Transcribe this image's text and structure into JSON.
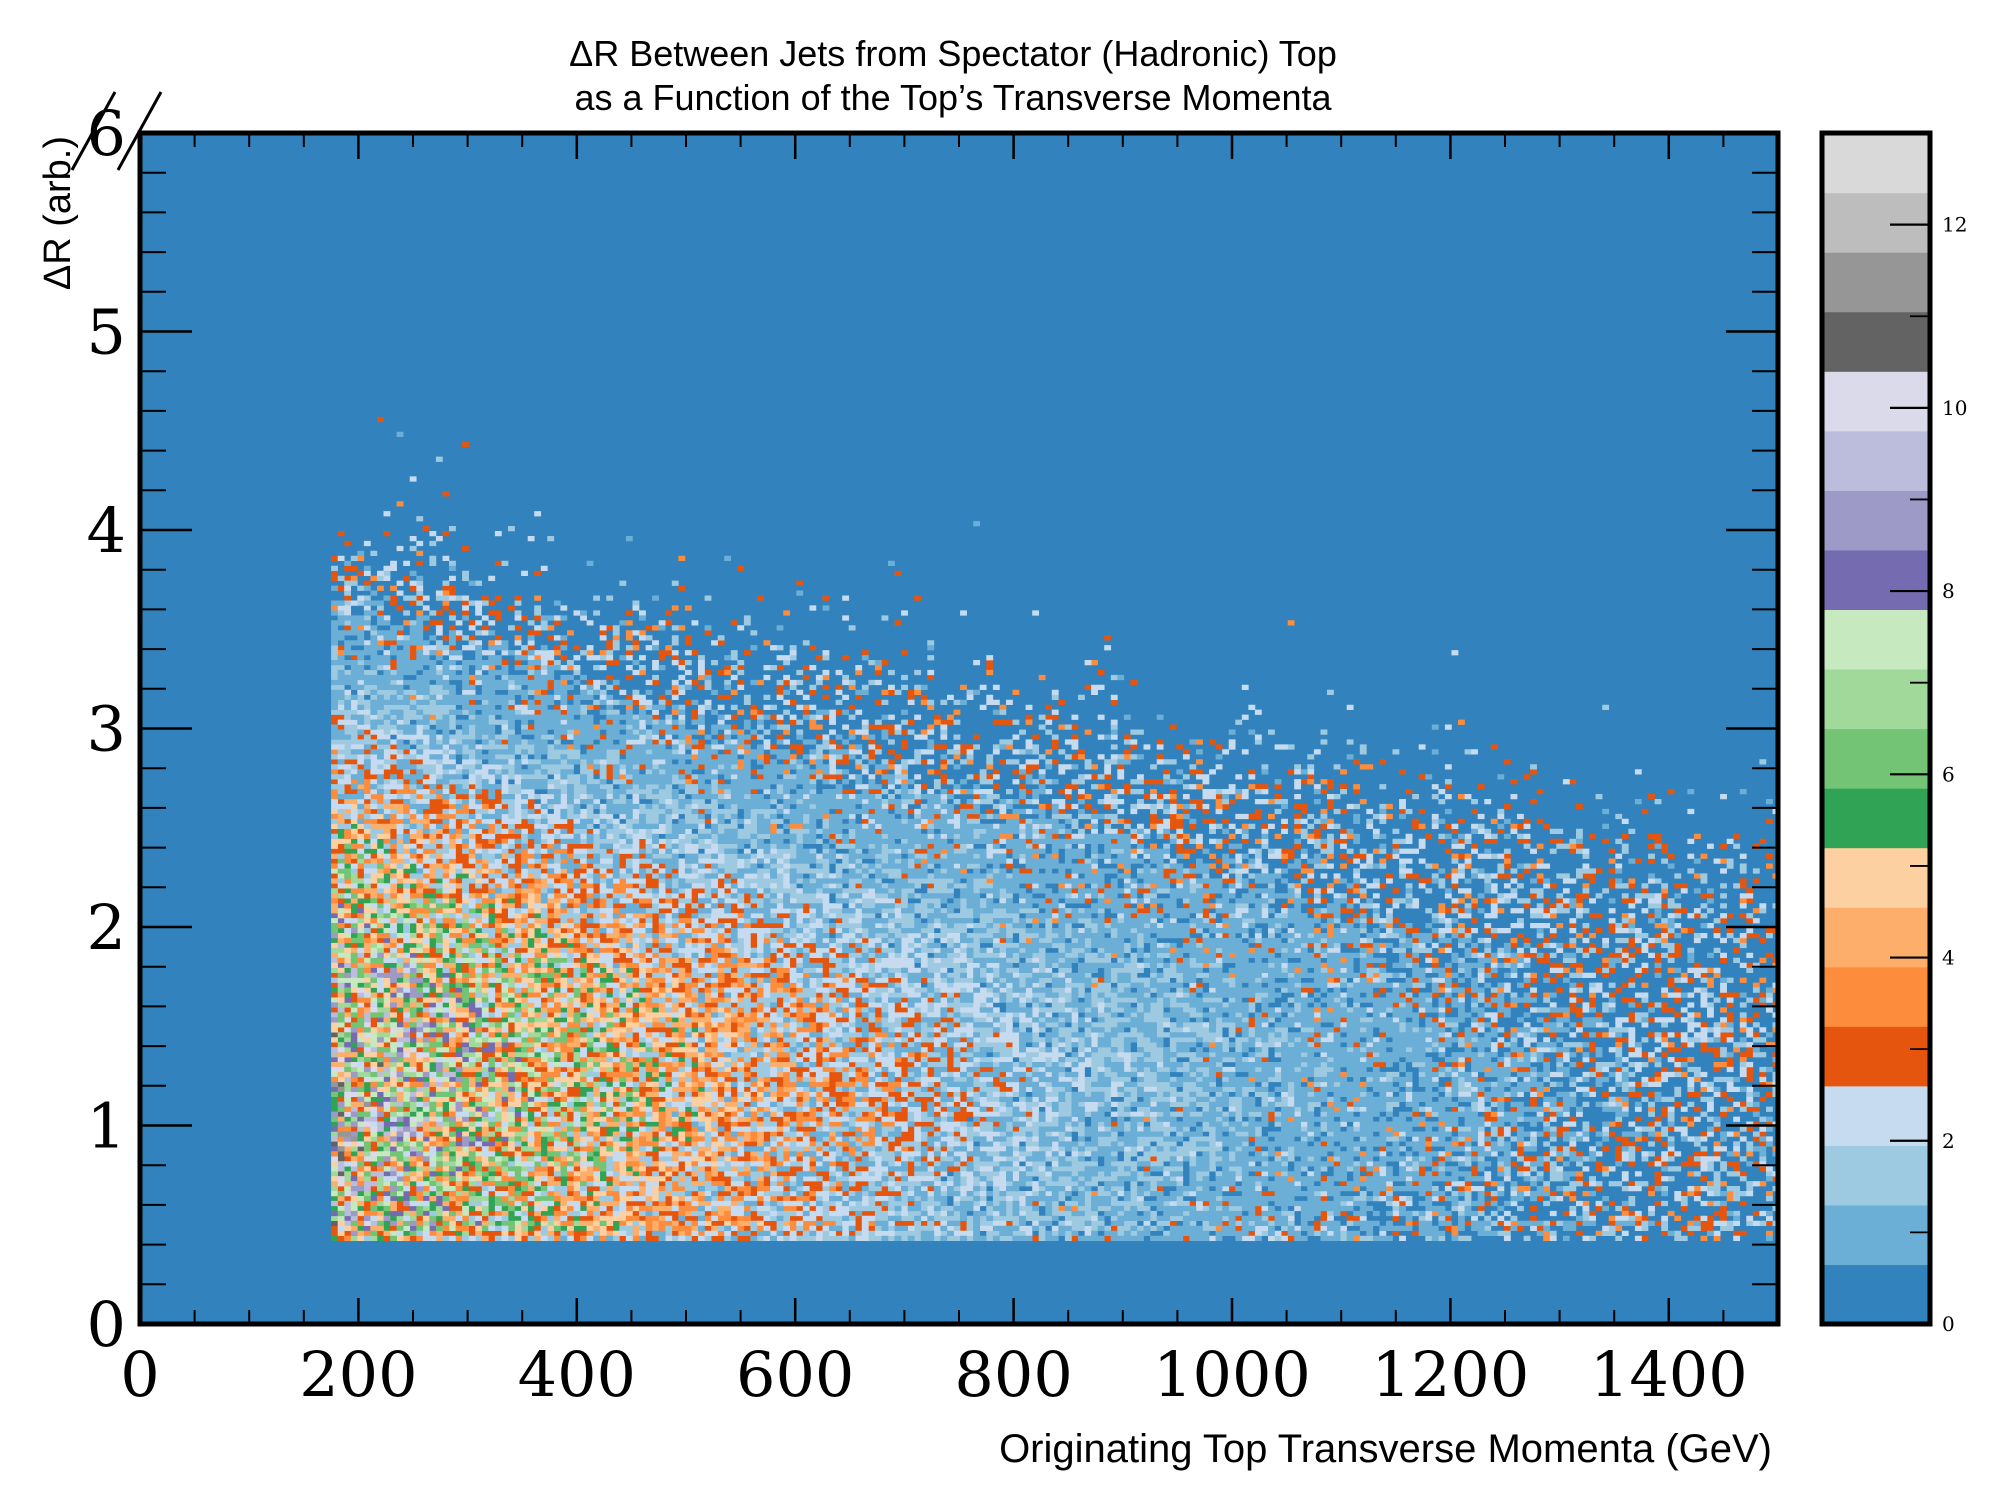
{
  "chart_data": {
    "type": "heatmap",
    "title_lines": [
      "ΔR Between Jets from Spectator (Hadronic) Top",
      "as a Function of the Top’s Transverse Momenta"
    ],
    "xlabel": "Originating Top Transverse Momenta (GeV)",
    "ylabel": "ΔR (arb.)",
    "xlim": [
      0,
      1500
    ],
    "ylim": [
      0,
      6
    ],
    "x_ticks": [
      "0",
      "200",
      "400",
      "600",
      "800",
      "1000",
      "1200",
      "1400"
    ],
    "y_ticks": [
      "0",
      "1",
      "2",
      "3",
      "4",
      "5",
      "6"
    ],
    "colorbar": {
      "range": [
        0,
        13
      ],
      "ticks": [
        "0",
        "2",
        "4",
        "6",
        "8",
        "10",
        "12"
      ],
      "colors": [
        "#3182bd",
        "#6baed6",
        "#9ecae1",
        "#c6dbef",
        "#e6550d",
        "#fd8d3c",
        "#fdae6b",
        "#fdd0a2",
        "#31a354",
        "#74c476",
        "#a1d99b",
        "#c7e9c0",
        "#756bb1",
        "#9e9ac8",
        "#bcbddc",
        "#dadaeb",
        "#636363",
        "#969696",
        "#bdbdbd",
        "#d9d9d9"
      ]
    },
    "density_shape": {
      "x_start": 175,
      "y_min": 0.42,
      "peak_region": {
        "x": [
          180,
          500
        ],
        "y": [
          0.5,
          3.2
        ]
      },
      "peak_counts": 7,
      "sparse_cutoff_y_at_x": [
        [
          200,
          3.7
        ],
        [
          600,
          3.3
        ],
        [
          1000,
          2.8
        ],
        [
          1400,
          2.3
        ]
      ]
    },
    "grid": false,
    "legend": "none"
  }
}
